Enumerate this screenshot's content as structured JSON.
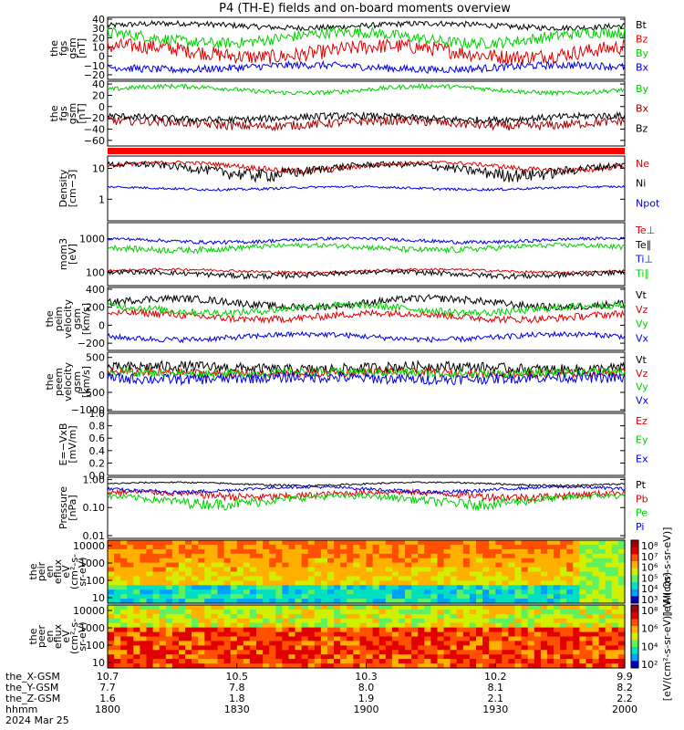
{
  "chart_data": {
    "type": "line",
    "title": "P4 (TH-E) fields and on-board moments overview",
    "panels": [
      {
        "id": "p1",
        "ylabel": [
          "the",
          "fgs",
          "gsm",
          "[nT]"
        ],
        "yticks": [
          "40",
          "30",
          "20",
          "10",
          "0",
          "−10",
          "−20"
        ],
        "scale": "linear",
        "ylim": [
          -25,
          42
        ],
        "series": [
          {
            "name": "Bt",
            "color": "#000000",
            "base": 33,
            "amp": 4,
            "noise": 3
          },
          {
            "name": "Bz",
            "color": "#e00000",
            "base": 5,
            "amp": 10,
            "noise": 8
          },
          {
            "name": "By",
            "color": "#00d000",
            "base": 20,
            "amp": 10,
            "noise": 6
          },
          {
            "name": "Bx",
            "color": "#0000e0",
            "base": -12,
            "amp": 4,
            "noise": 4
          }
        ]
      },
      {
        "id": "p2",
        "ylabel": [
          "the",
          "fgs",
          "gsm",
          "[nT]"
        ],
        "yticks": [
          "40",
          "20",
          "0",
          "−20",
          "−40",
          "−60"
        ],
        "scale": "linear",
        "ylim": [
          -70,
          45
        ],
        "series": [
          {
            "name": "By",
            "color": "#00d000",
            "base": 30,
            "amp": 10,
            "noise": 4
          },
          {
            "name": "Bx",
            "color": "#a00000",
            "base": -30,
            "amp": 8,
            "noise": 8
          },
          {
            "name": "Bz",
            "color": "#000000",
            "base": -20,
            "amp": 6,
            "noise": 6
          }
        ]
      },
      {
        "id": "p3",
        "ylabel": [
          "Density",
          "[cm−3]"
        ],
        "yticks": [
          "10",
          "1"
        ],
        "scale": "log",
        "ylim": [
          0.2,
          25
        ],
        "series": [
          {
            "name": "Ne",
            "color": "#e00000",
            "base": 12,
            "amp": 6,
            "noise": 2
          },
          {
            "name": "Ni",
            "color": "#000000",
            "base": 10,
            "amp": 6,
            "noise": 3
          },
          {
            "name": "Npot",
            "color": "#0000e0",
            "base": 2.3,
            "amp": 0.4,
            "noise": 0.2
          }
        ]
      },
      {
        "id": "p4",
        "ylabel": [
          "mom3",
          "[eV]"
        ],
        "yticks": [
          "1000",
          "100"
        ],
        "scale": "log",
        "ylim": [
          40,
          3000
        ],
        "series": [
          {
            "name": "Te⊥",
            "color": "#e00000",
            "base": 110,
            "amp": 20,
            "noise": 10
          },
          {
            "name": "Te∥",
            "color": "#000000",
            "base": 90,
            "amp": 20,
            "noise": 15
          },
          {
            "name": "Ti⊥",
            "color": "#0000e0",
            "base": 900,
            "amp": 200,
            "noise": 100
          },
          {
            "name": "Ti∥",
            "color": "#00d000",
            "base": 550,
            "amp": 150,
            "noise": 100
          }
        ]
      },
      {
        "id": "p5",
        "ylabel": [
          "the",
          "peim",
          "velocity",
          "gsm",
          "[km/s]"
        ],
        "yticks": [
          "400",
          "200",
          "0",
          "−200"
        ],
        "scale": "linear",
        "ylim": [
          -280,
          420
        ],
        "series": [
          {
            "name": "Vt",
            "color": "#000000",
            "base": 250,
            "amp": 80,
            "noise": 40
          },
          {
            "name": "Vz",
            "color": "#e00000",
            "base": 100,
            "amp": 60,
            "noise": 40
          },
          {
            "name": "Vy",
            "color": "#00d000",
            "base": 180,
            "amp": 70,
            "noise": 40
          },
          {
            "name": "Vx",
            "color": "#0000e0",
            "base": -130,
            "amp": 50,
            "noise": 30
          }
        ]
      },
      {
        "id": "p6",
        "ylabel": [
          "the",
          "peem",
          "velocity",
          "gsm",
          "[km/s]"
        ],
        "yticks": [
          "500",
          "0",
          "−500",
          "−1000"
        ],
        "scale": "linear",
        "ylim": [
          -1050,
          650
        ],
        "series": [
          {
            "name": "Vt",
            "color": "#000000",
            "base": 200,
            "amp": 80,
            "noise": 150
          },
          {
            "name": "Vz",
            "color": "#e00000",
            "base": 50,
            "amp": 50,
            "noise": 120
          },
          {
            "name": "Vy",
            "color": "#00d000",
            "base": 60,
            "amp": 50,
            "noise": 120
          },
          {
            "name": "Vx",
            "color": "#0000e0",
            "base": -100,
            "amp": 50,
            "noise": 150
          }
        ]
      },
      {
        "id": "p7",
        "ylabel": [
          "E=−VxB",
          "[mV/m]"
        ],
        "yticks": [
          "1.0",
          "0.8",
          "0.6",
          "0.4",
          "0.2",
          "0.0"
        ],
        "scale": "linear",
        "ylim": [
          0,
          1
        ],
        "series": [
          {
            "name": "Ez",
            "color": "#e00000",
            "base": null
          },
          {
            "name": "Ey",
            "color": "#00d000",
            "base": null
          },
          {
            "name": "Ex",
            "color": "#0000e0",
            "base": null
          }
        ]
      },
      {
        "id": "p8",
        "ylabel": [
          "Pressure",
          "[nPa]"
        ],
        "yticks": [
          "1.00",
          "0.10",
          "0.01"
        ],
        "scale": "log",
        "ylim": [
          0.008,
          1.2
        ],
        "series": [
          {
            "name": "Pt",
            "color": "#000000",
            "base": 0.7,
            "amp": 0.15,
            "noise": 0.05
          },
          {
            "name": "Pb",
            "color": "#e00000",
            "base": 0.3,
            "amp": 0.1,
            "noise": 0.08
          },
          {
            "name": "Pe",
            "color": "#00d000",
            "base": 0.2,
            "amp": 0.1,
            "noise": 0.06
          },
          {
            "name": "Pi",
            "color": "#0000e0",
            "base": 0.45,
            "amp": 0.15,
            "noise": 0.06
          }
        ]
      }
    ],
    "spectrograms": [
      {
        "id": "s1",
        "ylabel": [
          "the",
          "peir",
          "en",
          "eflux",
          "eV",
          "(cm²-s-",
          "sr-eV)"
        ],
        "yticks": [
          "10000",
          "1000",
          "100",
          "10"
        ],
        "colorbar_label": "[eV/(cm²-s-sr-eV)]",
        "colorbar_ticks": [
          "10⁸",
          "10⁷",
          "10⁶",
          "10⁵",
          "10⁴",
          "10³"
        ]
      },
      {
        "id": "s2",
        "ylabel": [
          "the",
          "peer",
          "en",
          "eflux",
          "eV",
          "(cm²-s-",
          "sr-eV)"
        ],
        "yticks": [
          "10000",
          "1000",
          "100",
          "10"
        ],
        "colorbar_label": "[eV/(cm²-s-sr-eV)] (All Qs)",
        "colorbar_ticks": [
          "10⁸",
          "10⁶",
          "10⁴",
          "10²"
        ]
      }
    ],
    "x_axis": {
      "rows": [
        {
          "label": "the_X-GSM",
          "values": [
            "10.7",
            "10.5",
            "10.3",
            "10.2",
            "9.9"
          ]
        },
        {
          "label": "the_Y-GSM",
          "values": [
            "7.7",
            "7.8",
            "8.0",
            "8.1",
            "8.2"
          ]
        },
        {
          "label": "the_Z-GSM",
          "values": [
            "1.6",
            "1.8",
            "1.9",
            "2.1",
            "2.2"
          ]
        },
        {
          "label": "hhmm",
          "values": [
            "1800",
            "1830",
            "1900",
            "1930",
            "2000"
          ]
        }
      ],
      "date": "2024 Mar 25"
    }
  }
}
